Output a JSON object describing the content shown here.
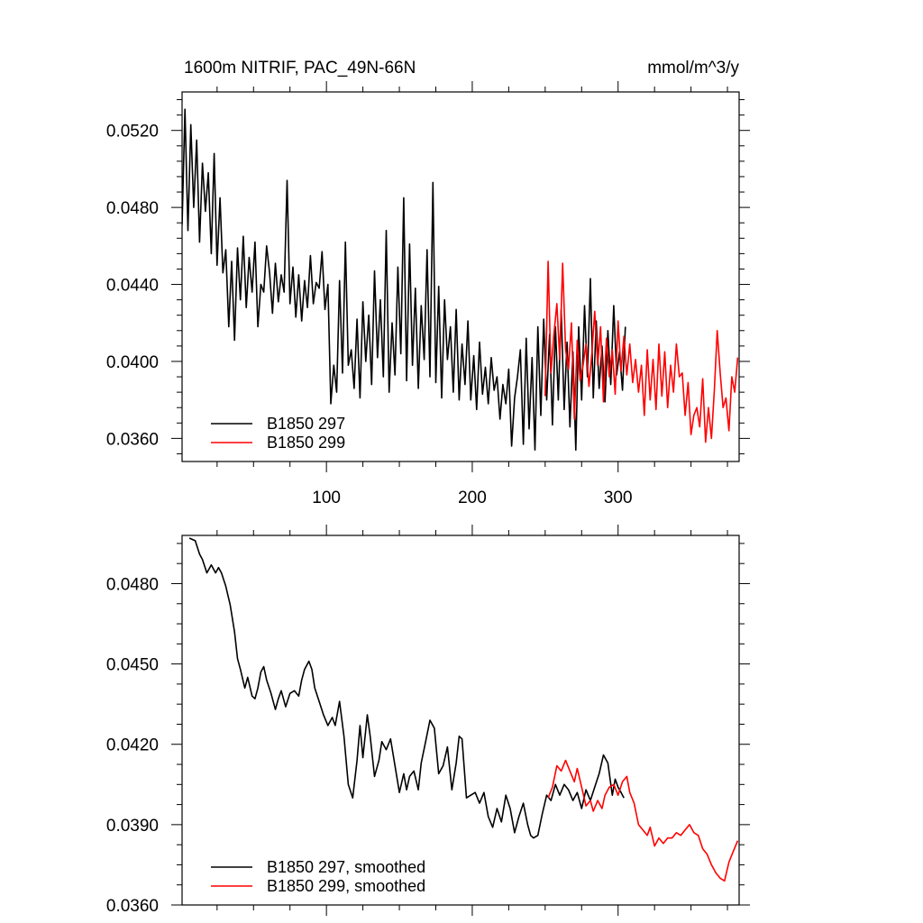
{
  "chart_data": [
    {
      "type": "line",
      "title": "1600m NITRIF, PAC_49N-66N",
      "units": "mmol/m^3/y",
      "xlim": [
        1,
        383
      ],
      "ylim": [
        0.0348,
        0.054
      ],
      "x_ticks": [
        100,
        200,
        300
      ],
      "x_tick_labels": [
        "100",
        "200",
        "300"
      ],
      "y_ticks": [
        0.036,
        0.04,
        0.044,
        0.048,
        0.052
      ],
      "y_tick_labels": [
        "0.0360",
        "0.0400",
        "0.0440",
        "0.0480",
        "0.0520"
      ],
      "legend_position": "bottom-left",
      "series": [
        {
          "name": "B1850 297",
          "color": "#000000",
          "x": [
            1,
            3,
            5,
            7,
            9,
            11,
            13,
            15,
            17,
            19,
            21,
            23,
            25,
            27,
            29,
            31,
            33,
            35,
            37,
            39,
            41,
            43,
            45,
            47,
            49,
            51,
            53,
            55,
            57,
            59,
            61,
            63,
            65,
            67,
            69,
            71,
            73,
            75,
            77,
            79,
            81,
            83,
            85,
            87,
            89,
            91,
            93,
            95,
            97,
            99,
            101,
            103,
            105,
            107,
            109,
            111,
            113,
            115,
            117,
            119,
            121,
            123,
            125,
            127,
            129,
            131,
            133,
            135,
            137,
            139,
            141,
            143,
            145,
            147,
            149,
            151,
            153,
            155,
            157,
            159,
            161,
            163,
            165,
            167,
            169,
            171,
            173,
            175,
            177,
            179,
            181,
            183,
            185,
            187,
            189,
            191,
            193,
            195,
            197,
            199,
            201,
            203,
            205,
            207,
            209,
            211,
            213,
            215,
            217,
            219,
            221,
            223,
            225,
            227,
            229,
            231,
            233,
            235,
            237,
            239,
            241,
            243,
            245,
            247,
            249,
            251,
            253,
            255,
            257,
            259,
            261,
            263,
            265,
            267,
            269,
            271,
            273,
            275,
            277,
            279,
            281,
            283,
            285,
            287,
            289,
            291,
            293,
            295,
            297,
            299,
            301,
            303,
            305
          ],
          "y": [
            0.0471,
            0.0531,
            0.0468,
            0.0523,
            0.048,
            0.0515,
            0.0462,
            0.0503,
            0.0478,
            0.0498,
            0.0456,
            0.0508,
            0.045,
            0.0485,
            0.0446,
            0.0458,
            0.0418,
            0.0452,
            0.0411,
            0.0459,
            0.0432,
            0.0465,
            0.0428,
            0.0454,
            0.0436,
            0.0462,
            0.0418,
            0.044,
            0.0436,
            0.046,
            0.0446,
            0.0425,
            0.0451,
            0.0431,
            0.0445,
            0.0436,
            0.0494,
            0.043,
            0.0449,
            0.0423,
            0.0445,
            0.0421,
            0.0442,
            0.0428,
            0.0455,
            0.043,
            0.0441,
            0.0438,
            0.0457,
            0.0427,
            0.044,
            0.0378,
            0.0398,
            0.0384,
            0.0442,
            0.0394,
            0.0462,
            0.0398,
            0.0406,
            0.0386,
            0.0422,
            0.0381,
            0.0431,
            0.04,
            0.0424,
            0.0388,
            0.0447,
            0.0402,
            0.0432,
            0.0392,
            0.0468,
            0.0384,
            0.042,
            0.0393,
            0.0449,
            0.0404,
            0.0485,
            0.039,
            0.0461,
            0.0398,
            0.0438,
            0.0386,
            0.0429,
            0.0401,
            0.0458,
            0.0392,
            0.0493,
            0.0389,
            0.0439,
            0.0381,
            0.0432,
            0.0401,
            0.0418,
            0.0384,
            0.0427,
            0.038,
            0.0409,
            0.0388,
            0.0421,
            0.038,
            0.0403,
            0.0375,
            0.041,
            0.0383,
            0.0397,
            0.0378,
            0.0402,
            0.0385,
            0.0392,
            0.037,
            0.0388,
            0.0378,
            0.0396,
            0.0356,
            0.0381,
            0.0392,
            0.0406,
            0.0357,
            0.0412,
            0.0365,
            0.0402,
            0.0354,
            0.0418,
            0.0372,
            0.0422,
            0.038,
            0.0414,
            0.0367,
            0.0418,
            0.038,
            0.0427,
            0.0375,
            0.041,
            0.0366,
            0.0405,
            0.0354,
            0.0418,
            0.038,
            0.0429,
            0.0392,
            0.0443,
            0.0381,
            0.0421,
            0.0386,
            0.0408,
            0.0379,
            0.0416,
            0.0388,
            0.0429,
            0.0393,
            0.0405,
            0.0385,
            0.0418
          ]
        },
        {
          "name": "B1850 299",
          "color": "#ff0000",
          "x": [
            250,
            252,
            254,
            256,
            258,
            260,
            262,
            264,
            266,
            268,
            270,
            272,
            274,
            276,
            278,
            280,
            282,
            284,
            286,
            288,
            290,
            292,
            294,
            296,
            298,
            300,
            302,
            304,
            306,
            308,
            310,
            312,
            314,
            316,
            318,
            320,
            322,
            324,
            326,
            328,
            330,
            332,
            334,
            336,
            338,
            340,
            342,
            344,
            346,
            348,
            350,
            352,
            354,
            356,
            358,
            360,
            362,
            364,
            366,
            368,
            370,
            372,
            374,
            376,
            378,
            380,
            382
          ],
          "y": [
            0.0382,
            0.0452,
            0.0394,
            0.0414,
            0.043,
            0.0401,
            0.0451,
            0.0406,
            0.0396,
            0.042,
            0.037,
            0.0411,
            0.039,
            0.0398,
            0.0409,
            0.0387,
            0.0404,
            0.0426,
            0.0398,
            0.0418,
            0.0379,
            0.0412,
            0.0392,
            0.0406,
            0.0383,
            0.0421,
            0.0395,
            0.0413,
            0.0393,
            0.0409,
            0.0389,
            0.0401,
            0.0384,
            0.0398,
            0.0372,
            0.0406,
            0.038,
            0.0401,
            0.0375,
            0.0409,
            0.0382,
            0.0405,
            0.0376,
            0.0398,
            0.0384,
            0.0409,
            0.0392,
            0.0394,
            0.0372,
            0.0389,
            0.0362,
            0.0372,
            0.0376,
            0.0366,
            0.0391,
            0.0358,
            0.0376,
            0.036,
            0.0385,
            0.0416,
            0.0394,
            0.0376,
            0.0381,
            0.0364,
            0.0392,
            0.0384,
            0.0402
          ]
        }
      ]
    },
    {
      "type": "line",
      "xlim": [
        1,
        383
      ],
      "ylim": [
        0.036,
        0.0498
      ],
      "x_ticks": [
        100,
        200,
        300
      ],
      "y_ticks": [
        0.036,
        0.039,
        0.042,
        0.045,
        0.048
      ],
      "y_tick_labels": [
        "0.0360",
        "0.0390",
        "0.0420",
        "0.0450",
        "0.0480"
      ],
      "legend_position": "bottom-left",
      "series": [
        {
          "name": "B1850 297, smoothed",
          "color": "#000000",
          "x": [
            6,
            10,
            13,
            15,
            18,
            21,
            24,
            26,
            28,
            31,
            34,
            37,
            39,
            41,
            44,
            46,
            49,
            51,
            53,
            55,
            57,
            59,
            62,
            65,
            67,
            69,
            72,
            75,
            78,
            81,
            83,
            85,
            88,
            90,
            92,
            95,
            98,
            101,
            104,
            106,
            109,
            112,
            115,
            118,
            121,
            123,
            125,
            128,
            130,
            133,
            136,
            138,
            141,
            144,
            147,
            150,
            153,
            155,
            157,
            160,
            163,
            165,
            168,
            171,
            174,
            177,
            180,
            183,
            186,
            189,
            191,
            193,
            196,
            199,
            202,
            205,
            208,
            211,
            214,
            217,
            220,
            223,
            226,
            229,
            232,
            235,
            238,
            240,
            242,
            245,
            248,
            251,
            254,
            257,
            260,
            263,
            266,
            269,
            272,
            275,
            278,
            281,
            284,
            287,
            290,
            293,
            296,
            298,
            300,
            302,
            304
          ],
          "y": [
            0.0497,
            0.0496,
            0.0491,
            0.0489,
            0.0484,
            0.0487,
            0.0484,
            0.0486,
            0.0484,
            0.0479,
            0.0472,
            0.0462,
            0.0452,
            0.0448,
            0.0441,
            0.0445,
            0.0438,
            0.0437,
            0.0441,
            0.0447,
            0.0449,
            0.0444,
            0.0439,
            0.0433,
            0.0437,
            0.044,
            0.0434,
            0.0439,
            0.044,
            0.0438,
            0.0444,
            0.0448,
            0.0451,
            0.0448,
            0.0441,
            0.0436,
            0.0431,
            0.0427,
            0.043,
            0.0427,
            0.0436,
            0.0423,
            0.0405,
            0.04,
            0.0414,
            0.0427,
            0.0415,
            0.0431,
            0.0423,
            0.0408,
            0.0414,
            0.0421,
            0.0418,
            0.0422,
            0.0412,
            0.0402,
            0.0409,
            0.0403,
            0.0408,
            0.041,
            0.0403,
            0.0413,
            0.0421,
            0.0429,
            0.0426,
            0.0409,
            0.0412,
            0.0419,
            0.0403,
            0.0413,
            0.0423,
            0.0422,
            0.04,
            0.0401,
            0.0402,
            0.0398,
            0.0402,
            0.0393,
            0.0389,
            0.0396,
            0.0391,
            0.0401,
            0.0396,
            0.0387,
            0.0393,
            0.0398,
            0.039,
            0.0386,
            0.0385,
            0.0386,
            0.0394,
            0.0401,
            0.0399,
            0.0405,
            0.0401,
            0.0405,
            0.0403,
            0.0399,
            0.0402,
            0.0396,
            0.0403,
            0.0399,
            0.0404,
            0.0409,
            0.0416,
            0.0413,
            0.0401,
            0.0407,
            0.0404,
            0.0402,
            0.04
          ]
        },
        {
          "name": "B1850 299, smoothed",
          "color": "#ff0000",
          "x": [
            252,
            255,
            258,
            261,
            264,
            267,
            270,
            272,
            275,
            278,
            281,
            283,
            286,
            289,
            291,
            294,
            297,
            300,
            303,
            306,
            308,
            311,
            314,
            317,
            320,
            322,
            325,
            328,
            331,
            334,
            337,
            340,
            343,
            346,
            349,
            352,
            355,
            358,
            361,
            364,
            367,
            370,
            373,
            376,
            379,
            382
          ],
          "y": [
            0.04,
            0.0404,
            0.0412,
            0.041,
            0.0414,
            0.041,
            0.0406,
            0.0411,
            0.0404,
            0.0397,
            0.0399,
            0.0395,
            0.0399,
            0.0396,
            0.0401,
            0.0404,
            0.0405,
            0.0401,
            0.0406,
            0.0408,
            0.0402,
            0.0398,
            0.039,
            0.0388,
            0.0386,
            0.0389,
            0.0382,
            0.0385,
            0.0383,
            0.0385,
            0.0385,
            0.0387,
            0.0386,
            0.0388,
            0.039,
            0.0387,
            0.0386,
            0.0381,
            0.0379,
            0.0375,
            0.0372,
            0.037,
            0.0369,
            0.0376,
            0.038,
            0.0384
          ]
        }
      ]
    }
  ]
}
